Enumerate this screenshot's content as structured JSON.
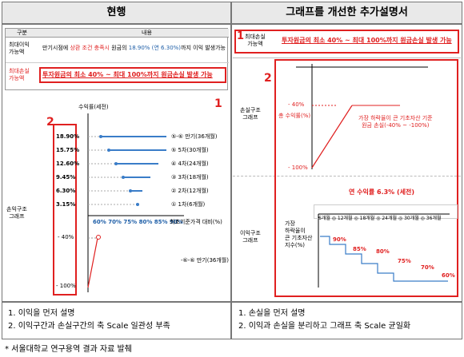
{
  "headers": {
    "left": "현행",
    "right": "그래프를 개선한 추가설명서"
  },
  "left": {
    "table": {
      "col_label": "구분",
      "col_content": "내용",
      "profit_label": "최대이익\n가능액",
      "profit_text_a": "만기시점에 ",
      "profit_text_b": "상환 조건 충족시",
      "profit_text_c": " 원금의 ",
      "profit_text_d": "18.90% (연 6.30%)",
      "profit_text_e": "까지 이익 발생가능",
      "loss_label": "최대손실\n가능액",
      "loss_text": "투자원금의 최소 40% ~ 최대 100%까지 원금손실 발생 가능"
    },
    "marker1": "1",
    "marker2": "2",
    "chart": {
      "ylabel": "수익률(세전)",
      "side_label": "손익구조\n그래프",
      "xlabel": "최초기준가격 대비(%)",
      "rows": [
        {
          "rate": "18.90%",
          "label": "⑤-⑥ 만기(36개월)"
        },
        {
          "rate": "15.75%",
          "label": "⑤ 5차(30개월)"
        },
        {
          "rate": "12.60%",
          "label": "④ 4차(24개월)"
        },
        {
          "rate": "9.45%",
          "label": "③ 3차(18개월)"
        },
        {
          "rate": "6.30%",
          "label": "② 2차(12개월)"
        },
        {
          "rate": "3.15%",
          "label": "① 1차(6개월)"
        }
      ],
      "xticks": "60% 70% 75% 80% 85% 90%",
      "loss_top": "- 40%",
      "loss_bottom": "- 100%",
      "loss_label": "-⑥-⑥ 만기(36개월)"
    },
    "notes": [
      "1. 이익을 먼저 설명",
      "2. 이익구간과 손실구간의 축 Scale 일관성 부족"
    ]
  },
  "right": {
    "marker1": "1",
    "marker2": "2",
    "row1_label": "최대손실\n가능액",
    "row1_text": "투자원금의 최소 40% ~ 최대 100%까지 원금손실 발생 가능",
    "loss_side": "손실구조\n그래프",
    "loss_top": "- 40%",
    "loss_ylabel": "총 수익률(%)",
    "loss_bottom": "- 100%",
    "loss_annotation": "가장 하락율이 큰 기초자산 기준\n원금 손실(-40% ~ -100%)",
    "profit_side": "이익구조\n그래프",
    "profit_title": "연 수익률 6.3% (세전)",
    "profit_ylabel": "가장\n하락율이\n큰 기초자산\n지수(%)",
    "periods": "6개월 ◎ 12개월 ◎ 18개월 ◎ 24개월 ◎ 30개월 ◎ 36개월",
    "steps": [
      "90%",
      "85%",
      "80%",
      "75%",
      "70%",
      "60%"
    ],
    "notes": [
      "1. 손실을 먼저 설명",
      "2. 이익과 손실을 분리하고 그래프 축 Scale 균일화"
    ]
  },
  "footnote": "* 서울대학교 연구용역 결과 자료 발췌"
}
